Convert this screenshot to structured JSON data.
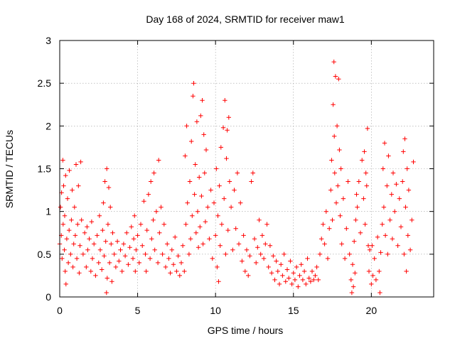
{
  "chart_data": {
    "type": "scatter",
    "title": "Day 168 of 2024, SRMTID for receiver maw1",
    "xlabel": "GPS time / hours",
    "ylabel": "SRMTID / TECUs",
    "xlim": [
      0,
      24
    ],
    "ylim": [
      0,
      3
    ],
    "xticks": [
      0,
      5,
      10,
      15,
      20
    ],
    "yticks": [
      0,
      0.5,
      1,
      1.5,
      2,
      2.5,
      3
    ],
    "xtick_labels": [
      "0",
      "5",
      "10",
      "15",
      "20"
    ],
    "ytick_labels": [
      "0",
      "0.5",
      "1",
      "1.5",
      "2",
      "2.5",
      "3"
    ],
    "grid": true,
    "marker": "+",
    "marker_color": "#ff0000",
    "series": [
      {
        "name": "maw1",
        "points": [
          [
            0.0,
            0.62
          ],
          [
            0.05,
            1.05
          ],
          [
            0.1,
            0.72
          ],
          [
            0.12,
            1.22
          ],
          [
            0.15,
            0.45
          ],
          [
            0.2,
            1.6
          ],
          [
            0.22,
            0.85
          ],
          [
            0.25,
            1.3
          ],
          [
            0.3,
            0.55
          ],
          [
            0.32,
            0.95
          ],
          [
            0.35,
            0.3
          ],
          [
            0.38,
            1.42
          ],
          [
            0.4,
            0.15
          ],
          [
            0.45,
            0.68
          ],
          [
            0.5,
            1.15
          ],
          [
            0.55,
            0.4
          ],
          [
            0.6,
            0.78
          ],
          [
            0.62,
            1.48
          ],
          [
            0.7,
            0.5
          ],
          [
            0.75,
            0.9
          ],
          [
            0.8,
            1.25
          ],
          [
            0.85,
            0.35
          ],
          [
            0.9,
            0.62
          ],
          [
            0.95,
            1.05
          ],
          [
            1.0,
            0.72
          ],
          [
            1.05,
            1.55
          ],
          [
            1.1,
            0.45
          ],
          [
            1.15,
            0.85
          ],
          [
            1.2,
            1.3
          ],
          [
            1.25,
            0.28
          ],
          [
            1.3,
            0.6
          ],
          [
            1.35,
            1.58
          ],
          [
            1.4,
            0.9
          ],
          [
            1.5,
            0.5
          ],
          [
            1.6,
            0.75
          ],
          [
            1.7,
            0.35
          ],
          [
            1.75,
            0.82
          ],
          [
            1.8,
            0.55
          ],
          [
            1.9,
            0.68
          ],
          [
            2.0,
            0.3
          ],
          [
            2.05,
            0.88
          ],
          [
            2.1,
            0.45
          ],
          [
            2.2,
            0.62
          ],
          [
            2.3,
            0.25
          ],
          [
            2.4,
            0.72
          ],
          [
            2.5,
            0.4
          ],
          [
            2.55,
            0.95
          ],
          [
            2.6,
            0.55
          ],
          [
            2.7,
            0.32
          ],
          [
            2.75,
            0.78
          ],
          [
            2.8,
            1.1
          ],
          [
            2.85,
            0.48
          ],
          [
            2.9,
            1.35
          ],
          [
            2.95,
            0.65
          ],
          [
            3.0,
            0.05
          ],
          [
            3.02,
            1.5
          ],
          [
            3.05,
            0.22
          ],
          [
            3.1,
            0.85
          ],
          [
            3.15,
            1.28
          ],
          [
            3.2,
            0.4
          ],
          [
            3.25,
            1.05
          ],
          [
            3.3,
            0.62
          ],
          [
            3.35,
            0.18
          ],
          [
            3.4,
            0.75
          ],
          [
            3.5,
            0.5
          ],
          [
            3.6,
            0.35
          ],
          [
            3.7,
            0.65
          ],
          [
            3.8,
            0.42
          ],
          [
            3.9,
            0.55
          ],
          [
            4.0,
            0.3
          ],
          [
            4.1,
            0.62
          ],
          [
            4.2,
            0.48
          ],
          [
            4.3,
            0.75
          ],
          [
            4.4,
            0.38
          ],
          [
            4.5,
            0.58
          ],
          [
            4.6,
            0.82
          ],
          [
            4.7,
            0.45
          ],
          [
            4.75,
            0.68
          ],
          [
            4.8,
            0.95
          ],
          [
            4.85,
            0.3
          ],
          [
            4.9,
            0.55
          ],
          [
            5.0,
            0.72
          ],
          [
            5.1,
            0.4
          ],
          [
            5.2,
            0.85
          ],
          [
            5.3,
            0.6
          ],
          [
            5.4,
            1.12
          ],
          [
            5.5,
            0.5
          ],
          [
            5.55,
            0.3
          ],
          [
            5.6,
            0.78
          ],
          [
            5.7,
            1.2
          ],
          [
            5.8,
            0.45
          ],
          [
            5.85,
            1.35
          ],
          [
            5.9,
            0.68
          ],
          [
            6.0,
            0.9
          ],
          [
            6.05,
            1.45
          ],
          [
            6.1,
            0.55
          ],
          [
            6.2,
            1.0
          ],
          [
            6.3,
            0.4
          ],
          [
            6.35,
            1.6
          ],
          [
            6.4,
            0.75
          ],
          [
            6.5,
            1.05
          ],
          [
            6.6,
            0.5
          ],
          [
            6.7,
            0.85
          ],
          [
            6.8,
            0.35
          ],
          [
            6.9,
            0.62
          ],
          [
            7.0,
            0.45
          ],
          [
            7.1,
            0.28
          ],
          [
            7.2,
            0.55
          ],
          [
            7.3,
            0.38
          ],
          [
            7.4,
            0.7
          ],
          [
            7.5,
            0.3
          ],
          [
            7.6,
            0.48
          ],
          [
            7.7,
            0.25
          ],
          [
            7.8,
            0.4
          ],
          [
            7.9,
            0.6
          ],
          [
            8.0,
            0.3
          ],
          [
            8.05,
            1.65
          ],
          [
            8.1,
            0.85
          ],
          [
            8.15,
            2.0
          ],
          [
            8.2,
            1.1
          ],
          [
            8.3,
            0.5
          ],
          [
            8.35,
            1.35
          ],
          [
            8.4,
            0.68
          ],
          [
            8.45,
            1.82
          ],
          [
            8.5,
            0.95
          ],
          [
            8.55,
            2.35
          ],
          [
            8.6,
            2.5
          ],
          [
            8.65,
            1.2
          ],
          [
            8.7,
            1.55
          ],
          [
            8.75,
            0.75
          ],
          [
            8.8,
            2.05
          ],
          [
            8.85,
            1.0
          ],
          [
            8.9,
            0.58
          ],
          [
            8.95,
            1.4
          ],
          [
            9.0,
            0.82
          ],
          [
            9.05,
            2.12
          ],
          [
            9.1,
            1.18
          ],
          [
            9.15,
            2.3
          ],
          [
            9.2,
            0.62
          ],
          [
            9.25,
            1.9
          ],
          [
            9.3,
            1.45
          ],
          [
            9.35,
            0.88
          ],
          [
            9.4,
            1.72
          ],
          [
            9.5,
            1.05
          ],
          [
            9.6,
            0.68
          ],
          [
            9.7,
            1.25
          ],
          [
            9.8,
            0.45
          ],
          [
            9.9,
            1.1
          ],
          [
            10.0,
            0.72
          ],
          [
            10.05,
            1.5
          ],
          [
            10.1,
            0.35
          ],
          [
            10.15,
            0.95
          ],
          [
            10.2,
            0.18
          ],
          [
            10.25,
            1.3
          ],
          [
            10.3,
            0.6
          ],
          [
            10.35,
            1.75
          ],
          [
            10.4,
            0.85
          ],
          [
            10.5,
            1.98
          ],
          [
            10.55,
            1.15
          ],
          [
            10.6,
            2.3
          ],
          [
            10.65,
            0.5
          ],
          [
            10.7,
            1.62
          ],
          [
            10.75,
            1.95
          ],
          [
            10.8,
            0.78
          ],
          [
            10.85,
            2.1
          ],
          [
            10.9,
            1.35
          ],
          [
            11.0,
            1.05
          ],
          [
            11.1,
            0.55
          ],
          [
            11.2,
            1.25
          ],
          [
            11.3,
            0.8
          ],
          [
            11.4,
            1.45
          ],
          [
            11.5,
            0.62
          ],
          [
            11.6,
            1.1
          ],
          [
            11.7,
            0.42
          ],
          [
            11.8,
            0.72
          ],
          [
            11.9,
            0.3
          ],
          [
            12.0,
            0.55
          ],
          [
            12.1,
            0.25
          ],
          [
            12.2,
            0.48
          ],
          [
            12.3,
            1.35
          ],
          [
            12.4,
            1.45
          ],
          [
            12.5,
            0.68
          ],
          [
            12.6,
            0.4
          ],
          [
            12.7,
            0.58
          ],
          [
            12.8,
            0.9
          ],
          [
            12.9,
            0.5
          ],
          [
            13.0,
            0.72
          ],
          [
            13.1,
            0.45
          ],
          [
            13.2,
            0.62
          ],
          [
            13.3,
            0.85
          ],
          [
            13.4,
            0.35
          ],
          [
            13.5,
            0.6
          ],
          [
            13.6,
            0.28
          ],
          [
            13.7,
            0.48
          ],
          [
            13.8,
            0.2
          ],
          [
            13.9,
            0.42
          ],
          [
            14.0,
            0.3
          ],
          [
            14.1,
            0.15
          ],
          [
            14.2,
            0.38
          ],
          [
            14.3,
            0.25
          ],
          [
            14.4,
            0.5
          ],
          [
            14.5,
            0.18
          ],
          [
            14.6,
            0.32
          ],
          [
            14.7,
            0.22
          ],
          [
            14.8,
            0.42
          ],
          [
            14.9,
            0.15
          ],
          [
            15.0,
            0.28
          ],
          [
            15.1,
            0.2
          ],
          [
            15.2,
            0.35
          ],
          [
            15.3,
            0.12
          ],
          [
            15.4,
            0.25
          ],
          [
            15.5,
            0.38
          ],
          [
            15.6,
            0.2
          ],
          [
            15.7,
            0.3
          ],
          [
            15.8,
            0.15
          ],
          [
            15.9,
            0.45
          ],
          [
            16.0,
            0.22
          ],
          [
            16.1,
            0.18
          ],
          [
            16.2,
            0.3
          ],
          [
            16.3,
            0.2
          ],
          [
            16.4,
            0.25
          ],
          [
            16.5,
            0.35
          ],
          [
            16.6,
            0.2
          ],
          [
            16.7,
            0.5
          ],
          [
            16.8,
            0.68
          ],
          [
            16.9,
            0.85
          ],
          [
            17.0,
            0.62
          ],
          [
            17.1,
            1.0
          ],
          [
            17.2,
            0.45
          ],
          [
            17.3,
            0.8
          ],
          [
            17.4,
            1.25
          ],
          [
            17.45,
            1.6
          ],
          [
            17.5,
            0.9
          ],
          [
            17.55,
            2.25
          ],
          [
            17.6,
            2.75
          ],
          [
            17.62,
            1.88
          ],
          [
            17.65,
            1.45
          ],
          [
            17.7,
            2.58
          ],
          [
            17.75,
            1.1
          ],
          [
            17.8,
            2.0
          ],
          [
            17.85,
            1.3
          ],
          [
            17.9,
            2.55
          ],
          [
            17.95,
            1.72
          ],
          [
            18.0,
            0.95
          ],
          [
            18.05,
            1.5
          ],
          [
            18.1,
            0.62
          ],
          [
            18.2,
            1.15
          ],
          [
            18.3,
            0.45
          ],
          [
            18.4,
            0.8
          ],
          [
            18.5,
            1.35
          ],
          [
            18.6,
            0.5
          ],
          [
            18.7,
            0.2
          ],
          [
            18.75,
            0.05
          ],
          [
            18.8,
            0.38
          ],
          [
            18.85,
            0.12
          ],
          [
            18.9,
            0.65
          ],
          [
            18.95,
            0.28
          ],
          [
            19.0,
            0.9
          ],
          [
            19.05,
            1.2
          ],
          [
            19.1,
            1.05
          ],
          [
            19.2,
            1.35
          ],
          [
            19.3,
            0.75
          ],
          [
            19.4,
            1.6
          ],
          [
            19.5,
            1.15
          ],
          [
            19.55,
            1.7
          ],
          [
            19.6,
            0.85
          ],
          [
            19.65,
            1.45
          ],
          [
            19.7,
            1.3
          ],
          [
            19.75,
            1.97
          ],
          [
            19.8,
            0.6
          ],
          [
            19.85,
            0.3
          ],
          [
            19.9,
            0.55
          ],
          [
            20.0,
            0.15
          ],
          [
            20.05,
            0.6
          ],
          [
            20.1,
            0.25
          ],
          [
            20.2,
            0.45
          ],
          [
            20.3,
            0.2
          ],
          [
            20.4,
            0.7
          ],
          [
            20.5,
            0.3
          ],
          [
            20.55,
            0.05
          ],
          [
            20.6,
            0.52
          ],
          [
            20.7,
            0.85
          ],
          [
            20.75,
            1.5
          ],
          [
            20.8,
            1.05
          ],
          [
            20.85,
            1.8
          ],
          [
            20.9,
            0.72
          ],
          [
            21.0,
            1.3
          ],
          [
            21.05,
            0.5
          ],
          [
            21.1,
            1.65
          ],
          [
            21.2,
            0.9
          ],
          [
            21.3,
            1.2
          ],
          [
            21.35,
            0.68
          ],
          [
            21.4,
            1.45
          ],
          [
            21.5,
            1.0
          ],
          [
            21.6,
            1.32
          ],
          [
            21.7,
            0.6
          ],
          [
            21.8,
            1.15
          ],
          [
            21.9,
            0.82
          ],
          [
            22.0,
            1.35
          ],
          [
            22.05,
            1.7
          ],
          [
            22.1,
            0.5
          ],
          [
            22.15,
            1.85
          ],
          [
            22.2,
            1.05
          ],
          [
            22.25,
            0.3
          ],
          [
            22.3,
            1.5
          ],
          [
            22.35,
            0.72
          ],
          [
            22.4,
            1.25
          ],
          [
            22.5,
            0.55
          ],
          [
            22.6,
            0.9
          ],
          [
            22.7,
            1.58
          ]
        ]
      }
    ]
  }
}
